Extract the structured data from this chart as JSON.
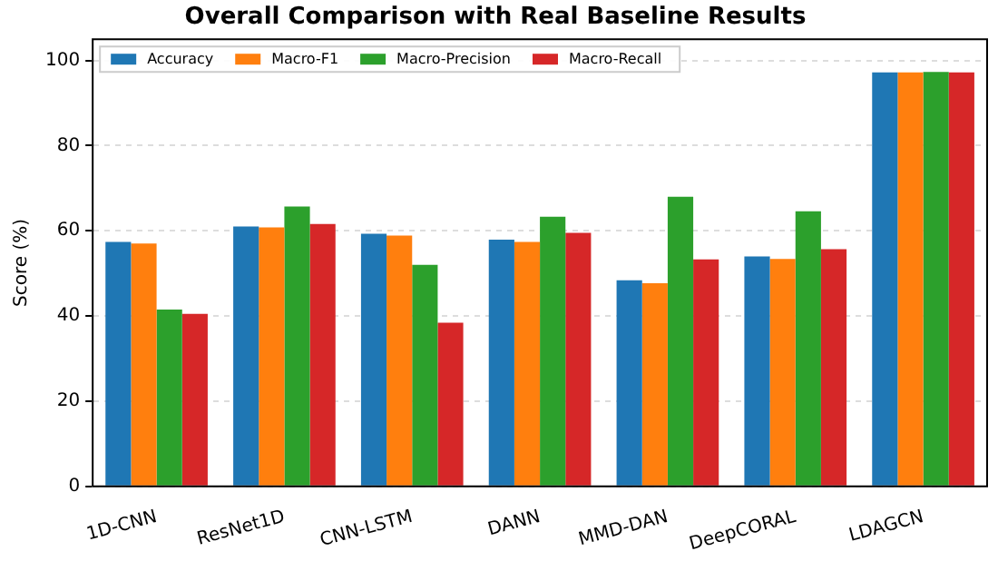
{
  "chart_data": {
    "type": "bar",
    "title": "Overall Comparison with Real Baseline Results",
    "ylabel": "Score (%)",
    "categories": [
      "1D-CNN",
      "ResNet1D",
      "CNN-LSTM",
      "DANN",
      "MMD-DAN",
      "DeepCORAL",
      "LDAGCN"
    ],
    "series": [
      {
        "name": "Accuracy",
        "color": "#1f77b4",
        "values": [
          57.4,
          61,
          59.3,
          57.9,
          48.4,
          54,
          97.2
        ]
      },
      {
        "name": "Macro-F1",
        "color": "#ff7f0e",
        "values": [
          57,
          60.8,
          58.9,
          57.4,
          47.7,
          53.4,
          97.2
        ]
      },
      {
        "name": "Macro-Precision",
        "color": "#2ca02c",
        "values": [
          41.5,
          65.7,
          52,
          63.3,
          68,
          64.6,
          97.3
        ]
      },
      {
        "name": "Macro-Recall",
        "color": "#d62728",
        "values": [
          40.5,
          61.6,
          38.4,
          59.5,
          53.3,
          55.7,
          97.2
        ]
      }
    ],
    "ylim": [
      0,
      105
    ],
    "yticks": [
      0,
      20,
      40,
      60,
      80,
      100
    ],
    "grid": "y",
    "legend": "top left"
  }
}
